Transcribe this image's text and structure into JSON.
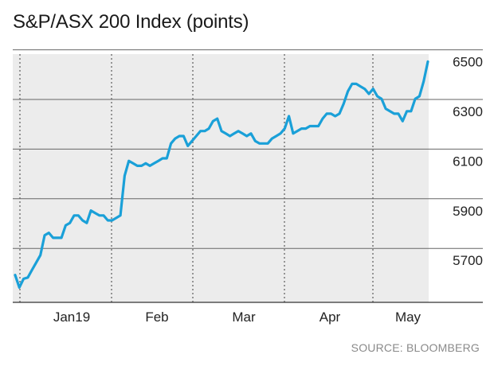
{
  "chart_data": {
    "type": "line",
    "title": "S&P/ASX 200 Index (points)",
    "source": "SOURCE: BLOOMBERG",
    "xlabel": "",
    "ylabel": "",
    "x_tick_labels": [
      "Jan19",
      "Feb",
      "Mar",
      "Apr",
      "May"
    ],
    "y_ticks": [
      5700,
      5900,
      6100,
      6300,
      6500
    ],
    "y_tick_labels": [
      "5700",
      "5900",
      "6100",
      "6300",
      "6500"
    ],
    "ylim": [
      5550,
      6550
    ],
    "grid": "horizontal solid, vertical dotted at month boundaries",
    "colors": {
      "line": "#1aa0d8",
      "plot_bg": "#ececec",
      "grid": "#555555"
    },
    "series": [
      {
        "values": [
          5660,
          5610,
          5645,
          5650,
          5680,
          5710,
          5740,
          5820,
          5830,
          5810,
          5810,
          5810,
          5860,
          5870,
          5900,
          5900,
          5880,
          5870,
          5920,
          5910,
          5900,
          5900,
          5880,
          5880,
          5890,
          5900,
          6060,
          6120,
          6110,
          6100,
          6100,
          6110,
          6100,
          6110,
          6120,
          6130,
          6130,
          6190,
          6210,
          6220,
          6220,
          6180,
          6200,
          6220,
          6240,
          6240,
          6250,
          6280,
          6290,
          6240,
          6230,
          6220,
          6230,
          6240,
          6230,
          6220,
          6230,
          6200,
          6190,
          6190,
          6190,
          6210,
          6220,
          6230,
          6250,
          6300,
          6230,
          6240,
          6250,
          6250,
          6260,
          6260,
          6260,
          6290,
          6310,
          6310,
          6300,
          6310,
          6350,
          6400,
          6430,
          6430,
          6420,
          6410,
          6390,
          6410,
          6380,
          6370,
          6330,
          6320,
          6310,
          6310,
          6280,
          6320,
          6320,
          6370,
          6380,
          6440,
          6520
        ]
      }
    ]
  }
}
